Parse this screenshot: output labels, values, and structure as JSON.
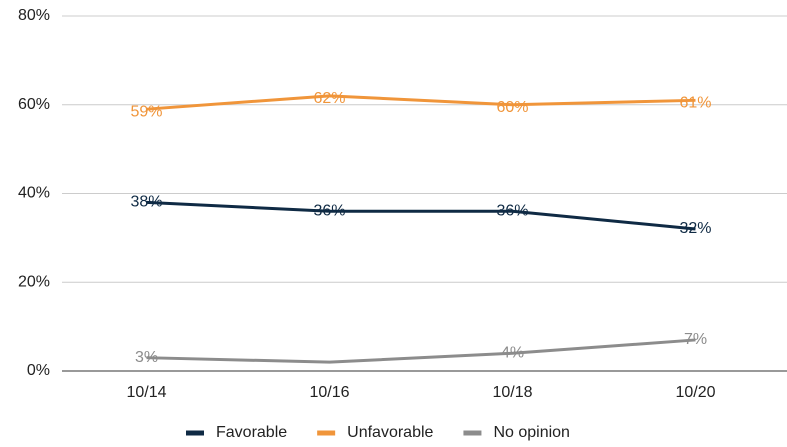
{
  "chart_data": {
    "type": "line",
    "categories": [
      "10/14",
      "10/16",
      "10/18",
      "10/20"
    ],
    "series": [
      {
        "name": "Favorable",
        "color": "#0f2a44",
        "values": [
          38,
          36,
          36,
          32
        ],
        "value_labels": [
          "38%",
          "36%",
          "36%",
          "32%"
        ]
      },
      {
        "name": "Unfavorable",
        "color": "#f0953a",
        "values": [
          59,
          62,
          60,
          61
        ],
        "value_labels": [
          "59%",
          "62%",
          "60%",
          "61%"
        ]
      },
      {
        "name": "No opinion",
        "color": "#8c8c8c",
        "values": [
          3,
          2,
          4,
          7
        ],
        "value_labels": [
          "3%",
          null,
          "4%",
          "7%"
        ]
      }
    ],
    "ylim": [
      0,
      80
    ],
    "yticks": [
      {
        "value": 0,
        "label": "0%"
      },
      {
        "value": 20,
        "label": "20%"
      },
      {
        "value": 40,
        "label": "40%"
      },
      {
        "value": 60,
        "label": "60%"
      },
      {
        "value": 80,
        "label": "80%"
      }
    ],
    "grid": true,
    "legend": "bottom"
  }
}
